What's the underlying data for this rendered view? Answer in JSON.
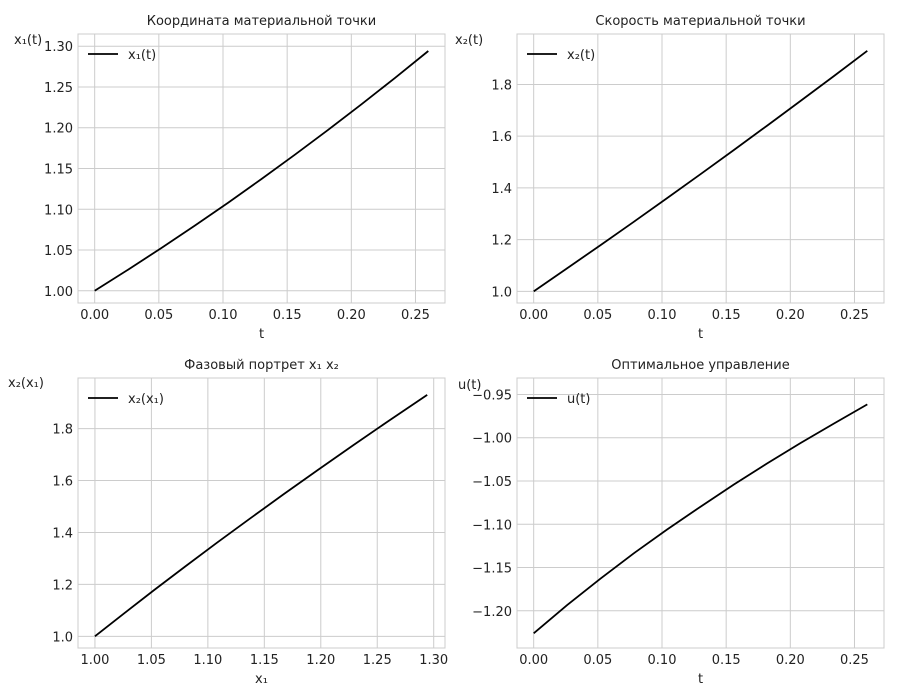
{
  "figure": {
    "background": "#ffffff",
    "grid_color": "#cccccc",
    "line_color": "#000000"
  },
  "chart_data": [
    {
      "type": "line",
      "title": "Координата материальной точки",
      "xlabel": "t",
      "ylabel": "x₁(t)",
      "xlim": [
        -0.013,
        0.273
      ],
      "ylim": [
        0.985,
        1.315
      ],
      "xticks": [
        0.0,
        0.05,
        0.1,
        0.15,
        0.2,
        0.25
      ],
      "yticks": [
        1.0,
        1.05,
        1.1,
        1.15,
        1.2,
        1.25,
        1.3
      ],
      "xtick_labels": [
        "0.00",
        "0.05",
        "0.10",
        "0.15",
        "0.20",
        "0.25"
      ],
      "ytick_labels": [
        "1.00",
        "1.05",
        "1.10",
        "1.15",
        "1.20",
        "1.25",
        "1.30"
      ],
      "grid": true,
      "legend": "top-left",
      "series": [
        {
          "name": "x₁(t)",
          "x": [
            0.0,
            0.026,
            0.052,
            0.078,
            0.104,
            0.13,
            0.156,
            0.182,
            0.208,
            0.234,
            0.26
          ],
          "y": [
            1.0,
            1.0259,
            1.0525,
            1.0799,
            1.1081,
            1.1371,
            1.1669,
            1.1975,
            1.2289,
            1.2611,
            1.2942
          ]
        }
      ]
    },
    {
      "type": "line",
      "title": "Скорость материальной точки",
      "xlabel": "t",
      "ylabel": "x₂(t)",
      "xlim": [
        -0.013,
        0.273
      ],
      "ylim": [
        0.955,
        1.995
      ],
      "xticks": [
        0.0,
        0.05,
        0.1,
        0.15,
        0.2,
        0.25
      ],
      "yticks": [
        1.0,
        1.2,
        1.4,
        1.6,
        1.8
      ],
      "xtick_labels": [
        "0.00",
        "0.05",
        "0.10",
        "0.15",
        "0.20",
        "0.25"
      ],
      "ytick_labels": [
        "1.0",
        "1.2",
        "1.4",
        "1.6",
        "1.8"
      ],
      "grid": true,
      "legend": "top-left",
      "series": [
        {
          "name": "x₂(t)",
          "x": [
            0.0,
            0.026,
            0.052,
            0.078,
            0.104,
            0.13,
            0.156,
            0.182,
            0.208,
            0.234,
            0.26
          ],
          "y": [
            1.0,
            1.0887,
            1.1783,
            1.2689,
            1.3605,
            1.4531,
            1.5466,
            1.641,
            1.7364,
            1.8327,
            1.93
          ]
        }
      ]
    },
    {
      "type": "line",
      "title": "Фазовый портрет x₁ x₂",
      "xlabel": "x₁",
      "ylabel": "x₂(x₁)",
      "xlim": [
        0.985,
        1.31
      ],
      "ylim": [
        0.955,
        1.995
      ],
      "xticks": [
        1.0,
        1.05,
        1.1,
        1.15,
        1.2,
        1.25,
        1.3
      ],
      "yticks": [
        1.0,
        1.2,
        1.4,
        1.6,
        1.8
      ],
      "xtick_labels": [
        "1.00",
        "1.05",
        "1.10",
        "1.15",
        "1.20",
        "1.25",
        "1.30"
      ],
      "ytick_labels": [
        "1.0",
        "1.2",
        "1.4",
        "1.6",
        "1.8"
      ],
      "grid": true,
      "legend": "top-left",
      "series": [
        {
          "name": "x₂(x₁)",
          "x": [
            1.0,
            1.0259,
            1.0525,
            1.0799,
            1.1081,
            1.1371,
            1.1669,
            1.1975,
            1.2289,
            1.2611,
            1.2942
          ],
          "y": [
            1.0,
            1.0887,
            1.1783,
            1.2689,
            1.3605,
            1.4531,
            1.5466,
            1.641,
            1.7364,
            1.8327,
            1.93
          ]
        }
      ]
    },
    {
      "type": "line",
      "title": "Оптимальное управление",
      "xlabel": "t",
      "ylabel": "u(t)",
      "xlim": [
        -0.013,
        0.273
      ],
      "ylim": [
        -1.243,
        -0.931
      ],
      "xticks": [
        0.0,
        0.05,
        0.1,
        0.15,
        0.2,
        0.25
      ],
      "yticks": [
        -1.2,
        -1.15,
        -1.1,
        -1.05,
        -1.0,
        -0.95
      ],
      "xtick_labels": [
        "0.00",
        "0.05",
        "0.10",
        "0.15",
        "0.20",
        "0.25"
      ],
      "ytick_labels": [
        "−1.20",
        "−1.15",
        "−1.10",
        "−1.05",
        "−1.00",
        "−0.95"
      ],
      "grid": true,
      "legend": "top-left",
      "series": [
        {
          "name": "u(t)",
          "x": [
            0.0,
            0.026,
            0.052,
            0.078,
            0.104,
            0.13,
            0.156,
            0.182,
            0.208,
            0.234,
            0.26
          ],
          "y": [
            -1.226,
            -1.1935,
            -1.1629,
            -1.1336,
            -1.1061,
            -1.0797,
            -1.0541,
            -1.0297,
            -1.0061,
            -0.9836,
            -0.9615
          ]
        }
      ]
    }
  ]
}
